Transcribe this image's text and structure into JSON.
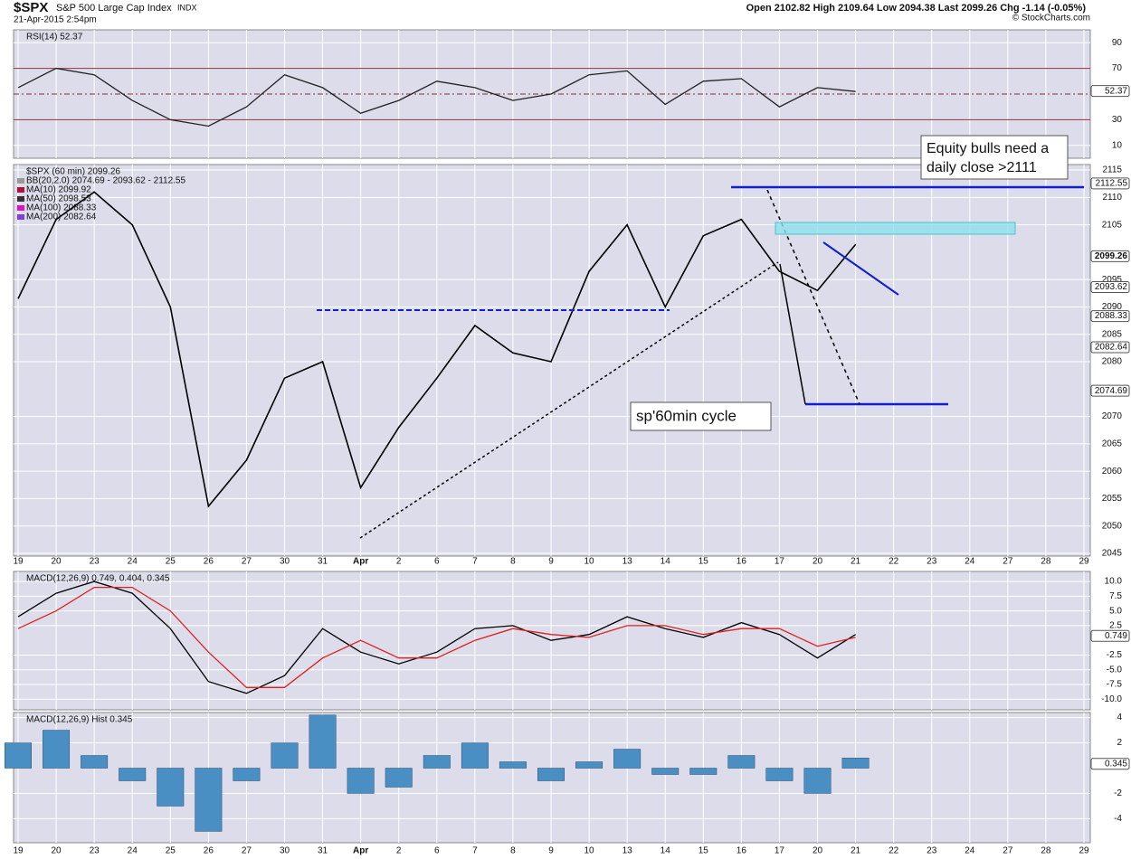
{
  "header": {
    "symbol": "$SPX",
    "name": "S&P 500 Large Cap Index",
    "exchange": "INDX",
    "timestamp": "21-Apr-2015 2:54pm",
    "quote": "Open 2102.82 High 2109.64 Low 2094.38 Last 2099.26 Chg -1.14 (-0.05%)",
    "credit": "© StockCharts.com"
  },
  "chart_data": [
    {
      "type": "line",
      "title": "RSI(14) 52.37",
      "categories": [
        "19",
        "20",
        "23",
        "24",
        "25",
        "26",
        "27",
        "30",
        "31",
        "Apr",
        "2",
        "6",
        "7",
        "8",
        "9",
        "10",
        "13",
        "14",
        "15",
        "16",
        "17",
        "20",
        "21",
        "22",
        "23",
        "24",
        "27",
        "28",
        "29"
      ],
      "series": [
        {
          "name": "RSI(14)",
          "color": "#222222",
          "values": [
            55,
            70,
            65,
            45,
            30,
            25,
            40,
            65,
            55,
            35,
            45,
            60,
            55,
            45,
            50,
            65,
            68,
            42,
            60,
            62,
            40,
            55,
            52,
            null,
            null,
            null,
            null,
            null,
            null
          ]
        }
      ],
      "ylim": [
        0,
        100
      ],
      "yticks": [
        10,
        30,
        70,
        90
      ],
      "reference_lines": [
        70,
        50,
        30
      ],
      "markers": [
        {
          "value": 52.37,
          "label": "52.37"
        }
      ],
      "grid": true
    },
    {
      "type": "line",
      "title": "$SPX (60 min) 2099.26",
      "categories": [
        "19",
        "20",
        "23",
        "24",
        "25",
        "26",
        "27",
        "30",
        "31",
        "Apr",
        "2",
        "6",
        "7",
        "8",
        "9",
        "10",
        "13",
        "14",
        "15",
        "16",
        "17",
        "20",
        "21",
        "22",
        "23",
        "24",
        "27",
        "28",
        "29"
      ],
      "series": [
        {
          "name": "$SPX (60 min)",
          "color": "#000000",
          "values": [
            2091.5,
            2106,
            2111,
            2105,
            2090,
            2053.6,
            2062,
            2077,
            2080,
            2057,
            2068,
            2077,
            2086.6,
            2081.6,
            2080,
            2096.5,
            2105,
            2090,
            2103,
            2106,
            2096.5,
            2093,
            2101.4,
            null,
            null,
            null,
            null,
            null,
            null
          ]
        }
      ],
      "legend": [
        {
          "text": "BB(20,2.0) 2074.69 - 2093.62 - 2112.55",
          "color": "#999999"
        },
        {
          "text": "MA(10) 2099.92",
          "color": "#b0103a"
        },
        {
          "text": "MA(50) 2098.53",
          "color": "#333333"
        },
        {
          "text": "MA(100) 2088.33",
          "color": "#e010c0"
        },
        {
          "text": "MA(200) 2082.64",
          "color": "#8040e0"
        }
      ],
      "ylim": [
        2044.5,
        2116
      ],
      "yticks": [
        2045,
        2050,
        2055,
        2060,
        2065,
        2070,
        2080,
        2085,
        2090,
        2095,
        2105,
        2110,
        2115
      ],
      "markers": [
        {
          "value": 2112.55,
          "label": "2112.55"
        },
        {
          "value": 2099.26,
          "label": "2099.26"
        },
        {
          "value": 2093.62,
          "label": "2093.62"
        },
        {
          "value": 2088.33,
          "label": "2088.33"
        },
        {
          "value": 2082.64,
          "label": "2082.64"
        },
        {
          "value": 2074.69,
          "label": "2074.69"
        }
      ],
      "annotations": [
        "Equity bulls need a",
        "daily close >2111",
        "sp'60min cycle"
      ],
      "grid": true
    },
    {
      "type": "line",
      "title": "MACD(12,26,9) 0.749, 0.404, 0.345",
      "categories": [
        "19",
        "20",
        "23",
        "24",
        "25",
        "26",
        "27",
        "30",
        "31",
        "Apr",
        "2",
        "6",
        "7",
        "8",
        "9",
        "10",
        "13",
        "14",
        "15",
        "16",
        "17",
        "20",
        "21",
        "22",
        "23",
        "24",
        "27",
        "28",
        "29"
      ],
      "series": [
        {
          "color": "#000000",
          "values": [
            4,
            8,
            10,
            8,
            2,
            -7,
            -9,
            -6,
            2,
            -2,
            -4,
            -2,
            2,
            2.5,
            0,
            1,
            4,
            2,
            0.5,
            3,
            1,
            -3,
            1,
            null,
            null,
            null,
            null,
            null,
            null
          ]
        },
        {
          "color": "#e02020",
          "values": [
            2,
            5,
            9,
            9,
            5,
            -2,
            -8,
            -8,
            -3,
            0,
            -3,
            -3,
            0,
            2,
            1,
            0.5,
            2.5,
            2.5,
            1,
            2,
            2,
            -1,
            0.5,
            null,
            null,
            null,
            null,
            null,
            null
          ]
        }
      ],
      "ylim": [
        -11.8,
        11.7
      ],
      "yticks": [
        {
          "value": 10,
          "label": "10.0"
        },
        7.5,
        {
          "value": 5,
          "label": "5.0"
        },
        2.5,
        -2.5,
        {
          "value": -5,
          "label": "-5.0"
        },
        -7.5,
        {
          "value": -10,
          "label": "-10.0"
        }
      ],
      "markers": [
        {
          "value": 0.749,
          "label": "0.749"
        }
      ],
      "grid": true
    },
    {
      "type": "bar",
      "title": "MACD(12,26,9) Hist 0.345",
      "categories": [
        "19",
        "20",
        "23",
        "24",
        "25",
        "26",
        "27",
        "30",
        "31",
        "Apr",
        "2",
        "6",
        "7",
        "8",
        "9",
        "10",
        "13",
        "14",
        "15",
        "16",
        "17",
        "20",
        "21",
        "22",
        "23",
        "24",
        "27",
        "28",
        "29"
      ],
      "values": [
        2,
        3,
        1,
        -1,
        -3,
        -5,
        -1,
        2,
        4.2,
        -2,
        -1.5,
        1,
        2,
        0.5,
        -1,
        0.5,
        1.5,
        -0.5,
        -0.5,
        1,
        -1,
        -2,
        0.8,
        null,
        null,
        null,
        null,
        null,
        null
      ],
      "color": "#4a8fc4",
      "ylim": [
        -5.9,
        4.4
      ],
      "yticks": [
        4,
        2,
        -2,
        -4
      ],
      "markers": [
        {
          "value": 0.345,
          "label": "0.345"
        }
      ],
      "grid": true
    }
  ]
}
